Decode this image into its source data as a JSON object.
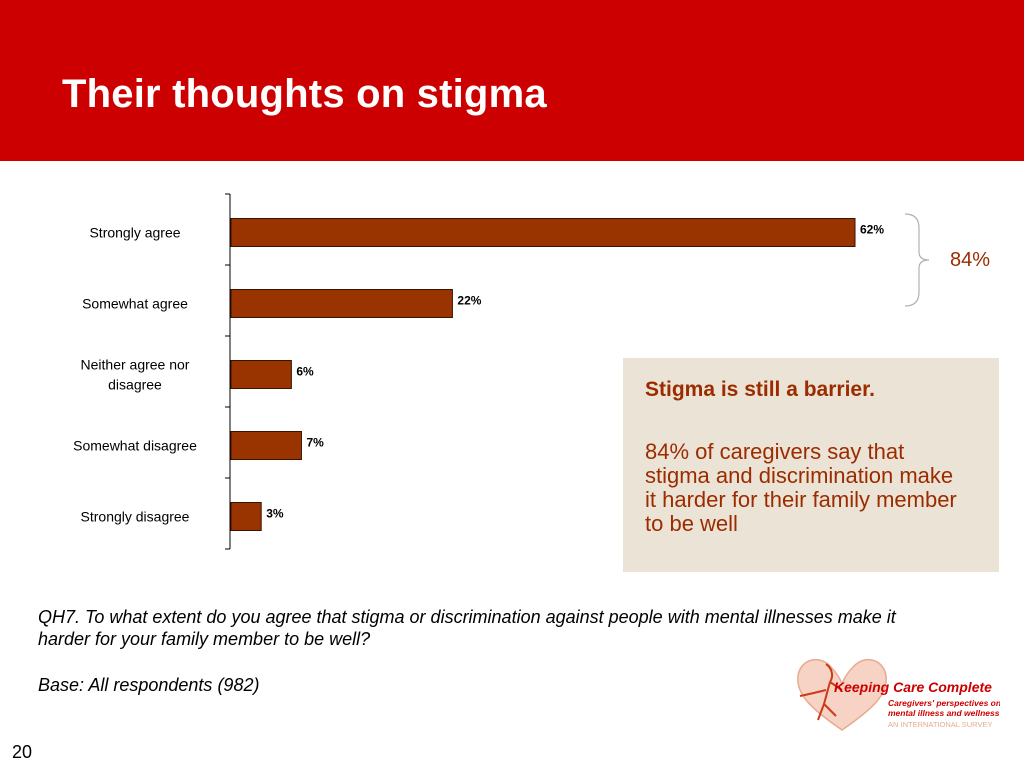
{
  "header": {
    "title": "Their thoughts on stigma"
  },
  "chart_data": {
    "type": "bar",
    "orientation": "horizontal",
    "categories": [
      "Strongly agree",
      "Somewhat agree",
      "Neither agree nor disagree",
      "Somewhat disagree",
      "Strongly disagree"
    ],
    "values": [
      62,
      22,
      6,
      7,
      3
    ],
    "value_labels": [
      "62%",
      "22%",
      "6%",
      "7%",
      "3%"
    ],
    "xlim": [
      0,
      70
    ],
    "grid": false,
    "bar_color": "#993300",
    "bracket": {
      "label": "84%",
      "spans": [
        "Strongly agree",
        "Somewhat agree"
      ],
      "color": "#9b2c00"
    }
  },
  "callout": {
    "heading": "Stigma is still a barrier.",
    "body": "84% of caregivers say that stigma and discrimination make it harder for their family member to be well"
  },
  "footer": {
    "question": "QH7. To what extent do you agree that stigma or discrimination against people with mental illnesses make it harder for your family member to be well?",
    "base": "Base: All respondents (982)",
    "page_number": "20"
  },
  "logo": {
    "name": "Keeping Care Complete",
    "tagline": "Caregivers' perspectives on mental illness and wellness",
    "subtitle": "AN INTERNATIONAL SURVEY"
  },
  "colors": {
    "header": "#cc0000",
    "accent": "#9b2c00",
    "bar": "#993300",
    "callout_bg": "#ebe3d5"
  }
}
